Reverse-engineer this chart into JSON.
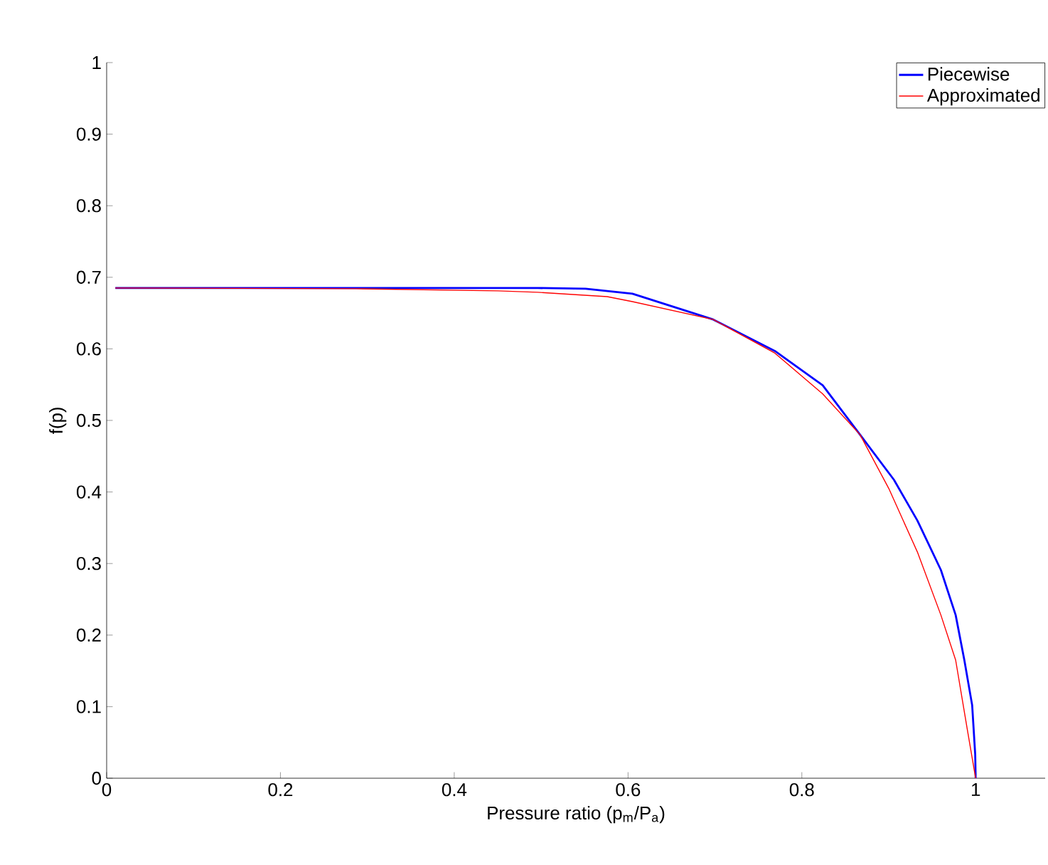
{
  "chart_data": {
    "type": "line",
    "xlabel": "Pressure ratio (p$_{m}$/P$_{a}$)",
    "ylabel": "f(p)",
    "xlim": [
      0,
      1.08
    ],
    "xticks": [
      0,
      0.2,
      0.4,
      0.6,
      0.8,
      1
    ],
    "ylim": [
      0,
      1
    ],
    "yticks": [
      0,
      0.1,
      0.2,
      0.3,
      0.4,
      0.5,
      0.6,
      0.7,
      0.8,
      0.9,
      1
    ],
    "legend": "top right",
    "grid": false,
    "line_style": "solid",
    "series": [
      {
        "name": "Piecewise",
        "color": "#0000ff",
        "x": [
          0.01,
          0.2,
          0.4,
          0.496,
          0.551,
          0.605,
          0.698,
          0.769,
          0.824,
          0.867,
          0.906,
          0.933,
          0.96,
          0.977,
          0.987,
          0.996,
          0.9995,
          1.0
        ],
        "values": [
          0.685,
          0.685,
          0.685,
          0.685,
          0.684,
          0.677,
          0.641,
          0.597,
          0.549,
          0.48,
          0.417,
          0.36,
          0.291,
          0.228,
          0.165,
          0.102,
          0.033,
          0
        ]
      },
      {
        "name": "Approximated",
        "color": "#ff0000",
        "x": [
          0.01,
          0.287,
          0.45,
          0.496,
          0.576,
          0.605,
          0.698,
          0.769,
          0.824,
          0.867,
          0.9,
          0.933,
          0.96,
          0.977,
          0.99,
          1.0
        ],
        "values": [
          0.685,
          0.684,
          0.681,
          0.679,
          0.673,
          0.666,
          0.641,
          0.594,
          0.537,
          0.48,
          0.405,
          0.316,
          0.228,
          0.165,
          0.071,
          0
        ]
      }
    ]
  }
}
